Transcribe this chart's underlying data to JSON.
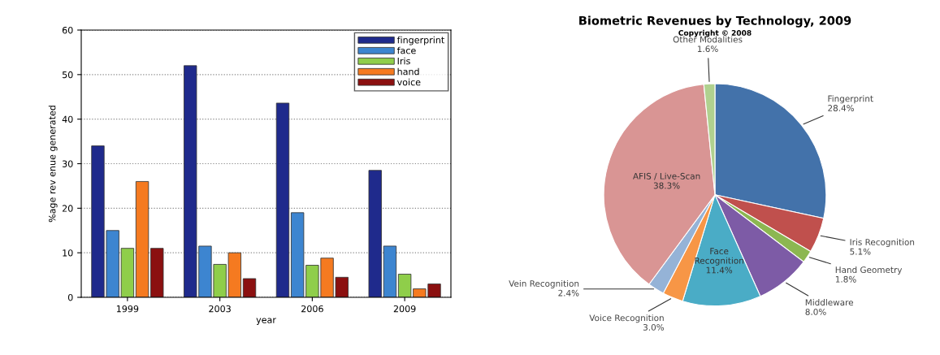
{
  "chart_data": [
    {
      "type": "bar",
      "xlabel": "year",
      "ylabel": "%age rev enue generated",
      "categories": [
        "1999",
        "2003",
        "2006",
        "2009"
      ],
      "series": [
        {
          "name": "fingerprint",
          "color": "#1f2a8c",
          "values": [
            34,
            52,
            43.6,
            28.5
          ]
        },
        {
          "name": "face",
          "color": "#3d85d0",
          "values": [
            15,
            11.5,
            19,
            11.5
          ]
        },
        {
          "name": "Iris",
          "color": "#8fce4a",
          "values": [
            11,
            7.4,
            7.2,
            5.2
          ]
        },
        {
          "name": "hand",
          "color": "#f57a20",
          "values": [
            26,
            10,
            8.8,
            1.9
          ]
        },
        {
          "name": "voice",
          "color": "#8b1010",
          "values": [
            11,
            4.2,
            4.5,
            3
          ]
        }
      ],
      "ylim": [
        0,
        60
      ],
      "yticks": [
        0,
        10,
        20,
        30,
        40,
        50,
        60
      ],
      "grid": "y",
      "legend": "top right"
    },
    {
      "type": "pie",
      "title": "Biometric Revenues by Technology, 2009",
      "subtitle": "Copyright © 2008",
      "categories": [
        "Fingerprint",
        "Iris Recognition",
        "Hand Geometry",
        "Middleware",
        "Face\nRecognition",
        "Voice Recognition",
        "Vein Recognition",
        "AFIS / Live-Scan",
        "Other Modalities"
      ],
      "values": [
        28.4,
        5.1,
        1.8,
        8.0,
        11.4,
        3.0,
        2.4,
        38.3,
        1.6
      ],
      "value_labels": [
        "28.4%",
        "5.1%",
        "1.8%",
        "8.0%",
        "11.4%",
        "3.0%",
        "2.4%",
        "38.3%",
        "1.6%"
      ],
      "colors": [
        "#4372aa",
        "#c0504d",
        "#8cb751",
        "#7d5ba6",
        "#4aacc6",
        "#f79646",
        "#95b3d7",
        "#d99594",
        "#b0d18f"
      ]
    }
  ]
}
